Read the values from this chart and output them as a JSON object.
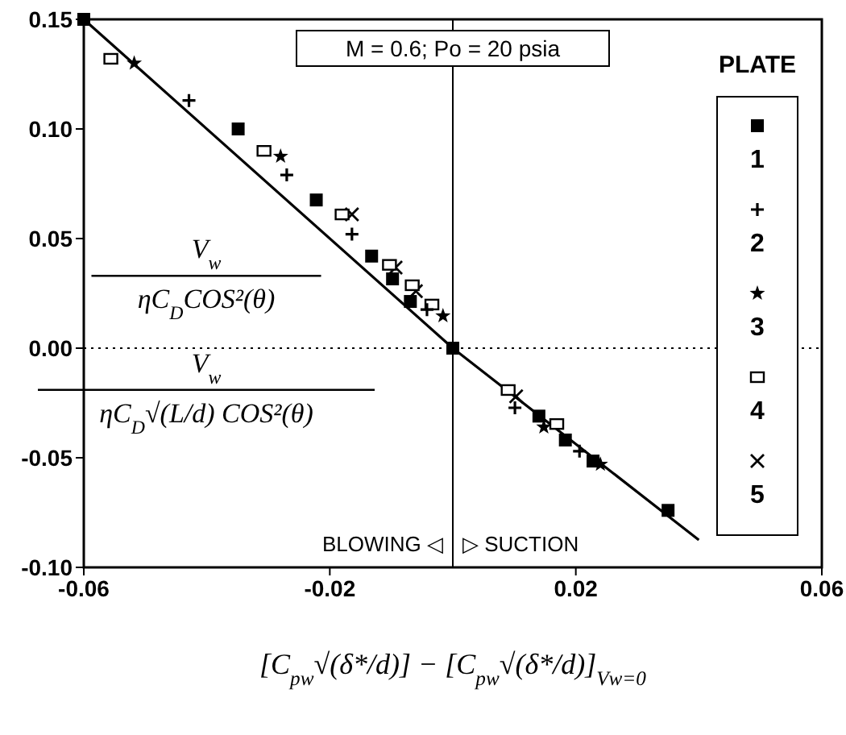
{
  "chart_data": {
    "type": "scatter",
    "xlabel": "[C$_{pw}$√(δ*/d)] − [C$_{pw}$√(δ*/d)]$_{Vw=0}$",
    "legend_title": "PLATE",
    "annotations": [
      "V$_{w}$",
      "ηC$_{D}$COS²(θ)",
      "V$_{w}$",
      "ηC$_{D}$√(L/d) COS²(θ)",
      "M = 0.6; Po = 20 psia",
      "BLOWING ◁",
      "▷ SUCTION"
    ],
    "xlim": [
      -0.06,
      0.06
    ],
    "xticks": [
      -0.06,
      -0.02,
      0.02,
      0.06
    ],
    "ylim": [
      -0.1,
      0.15
    ],
    "yticks": [
      {
        "value": -0.1,
        "label": "-0.10"
      },
      {
        "value": -0.05,
        "label": "-0.05"
      },
      {
        "value": 0,
        "label": "0.00"
      },
      {
        "value": 0.05,
        "label": "0.05"
      },
      {
        "value": 0.1,
        "label": "0.10"
      },
      {
        "value": 0.15,
        "label": "0.15"
      }
    ],
    "grid": false,
    "legend": "right",
    "ref_lines": [
      {
        "axis": "x",
        "value": 0,
        "line_style": "solid"
      },
      {
        "axis": "y",
        "value": 0,
        "line_style": "dotted"
      }
    ],
    "series": [
      {
        "name": "1",
        "color": "#000000",
        "marker": "square",
        "x": [
          -0.06,
          -0.0349,
          -0.0222,
          -0.0132,
          -0.0098,
          -0.0069,
          0,
          0.014,
          0.0183,
          0.0228,
          0.035
        ],
        "values": [
          0.15,
          0.1,
          0.0676,
          0.042,
          0.0316,
          0.0213,
          0,
          -0.031,
          -0.0419,
          -0.0515,
          -0.074
        ]
      },
      {
        "name": "2",
        "color": "#000000",
        "marker": "plus",
        "x": [
          -0.0429,
          -0.027,
          -0.0164,
          -0.0042,
          0.0101,
          0.0206
        ],
        "values": [
          0.113,
          0.079,
          0.052,
          0.0176,
          -0.0272,
          -0.047
        ]
      },
      {
        "name": "3",
        "color": "#000000",
        "marker": "star",
        "x": [
          -0.0518,
          -0.028,
          -0.0016,
          0.0148,
          0.024
        ],
        "values": [
          0.13,
          0.0875,
          0.0147,
          -0.036,
          -0.053
        ]
      },
      {
        "name": "4",
        "color": "#000000",
        "marker": "square-open",
        "x": [
          -0.0556,
          -0.0307,
          -0.018,
          -0.0103,
          -0.0066,
          -0.0034,
          0.009,
          0.0169
        ],
        "values": [
          0.132,
          0.09,
          0.061,
          0.038,
          0.0287,
          0.0199,
          -0.0191,
          -0.0346
        ]
      },
      {
        "name": "5",
        "color": "#000000",
        "marker": "cross",
        "x": [
          -0.0164,
          -0.0093,
          -0.006,
          0.0103
        ],
        "values": [
          0.061,
          0.0368,
          0.026,
          -0.022
        ]
      },
      {
        "type": "line",
        "color": "#000000",
        "marker": "none",
        "line_style": "solid",
        "x": [
          -0.06,
          0,
          0.04
        ],
        "values": [
          0.15,
          0,
          -0.0875
        ]
      }
    ]
  }
}
